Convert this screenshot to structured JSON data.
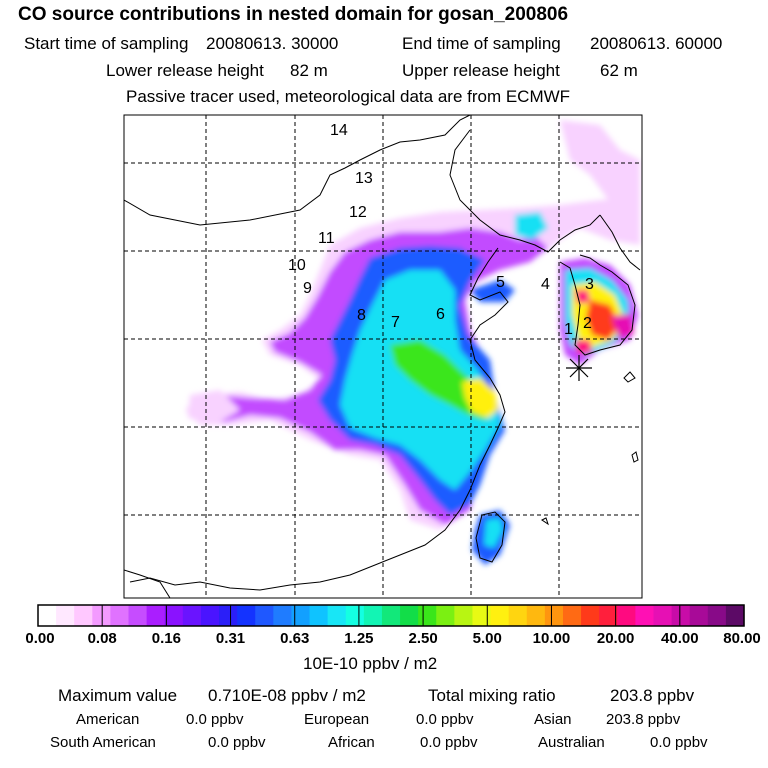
{
  "header": {
    "title": "CO  source contributions in nested domain for gosan_200806",
    "start_label": "Start time of sampling",
    "start_value": "20080613. 30000",
    "end_label": "End time of sampling",
    "end_value": "20080613. 60000",
    "lower_label": "Lower release height",
    "lower_value": "82 m",
    "upper_label": "Upper release height",
    "upper_value": "62 m",
    "note": "Passive tracer used, meteorological data are from ECMWF"
  },
  "chart_data": {
    "type": "heatmap",
    "title": "CO  source contributions in nested domain for gosan_200806",
    "unit_label": "10E-10 ppbv / m2",
    "grid": true,
    "receptor_marker": "gosan",
    "region_labels": [
      "14",
      "13",
      "12",
      "11",
      "10",
      "9",
      "8",
      "7",
      "6",
      "5",
      "4",
      "3",
      "2",
      "1"
    ],
    "colorbar": {
      "ticks": [
        "0.00",
        "0.08",
        "0.16",
        "0.31",
        "0.63",
        "1.25",
        "2.50",
        "5.00",
        "10.00",
        "20.00",
        "40.00",
        "80.00"
      ],
      "colors": [
        "#ffffff",
        "#ffe8ff",
        "#ffc8ff",
        "#f39aff",
        "#e072ff",
        "#c64cff",
        "#aa1eff",
        "#8a12ff",
        "#6a14ff",
        "#4a14ff",
        "#2b1ff8",
        "#1433ff",
        "#1f58ff",
        "#1f7cff",
        "#12a0ff",
        "#0fc3ff",
        "#18e6f6",
        "#14ffe2",
        "#12f5b4",
        "#12e87a",
        "#12dd48",
        "#3ae61a",
        "#7bf012",
        "#b8f512",
        "#e8fa14",
        "#fff010",
        "#ffd510",
        "#ffb80f",
        "#ff950f",
        "#ff6a14",
        "#ff3a1a",
        "#ff1f3c",
        "#ff0a80",
        "#ff10b4",
        "#e610b4",
        "#c80ca8",
        "#a80a98",
        "#880a88",
        "#5c0a66"
      ]
    }
  },
  "summary": {
    "max_label": "Maximum value",
    "max_value": "0.710E-08 ppbv / m2",
    "total_label": "Total mixing ratio",
    "total_value": "203.8 ppbv",
    "american_label": "American",
    "american_value": "0.0 ppbv",
    "european_label": "European",
    "european_value": "0.0 ppbv",
    "asian_label": "Asian",
    "asian_value": "203.8 ppbv",
    "south_american_label": "South American",
    "south_american_value": "0.0 ppbv",
    "african_label": "African",
    "african_value": "0.0 ppbv",
    "australian_label": "Australian",
    "australian_value": "0.0 ppbv"
  }
}
